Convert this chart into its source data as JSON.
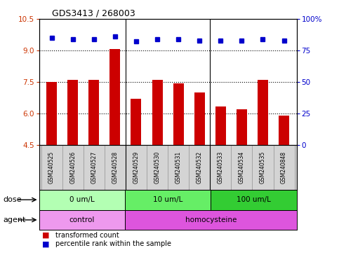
{
  "title": "GDS3413 / 268003",
  "samples": [
    "GSM240525",
    "GSM240526",
    "GSM240527",
    "GSM240528",
    "GSM240529",
    "GSM240530",
    "GSM240531",
    "GSM240532",
    "GSM240533",
    "GSM240534",
    "GSM240535",
    "GSM240848"
  ],
  "bar_values": [
    7.5,
    7.6,
    7.6,
    9.05,
    6.7,
    7.6,
    7.45,
    7.0,
    6.35,
    6.2,
    7.6,
    5.9
  ],
  "dot_values": [
    85,
    84,
    84,
    86,
    82,
    84,
    84,
    83,
    83,
    83,
    84,
    83
  ],
  "ylim_left": [
    4.5,
    10.5
  ],
  "ylim_right": [
    0,
    100
  ],
  "yticks_left": [
    4.5,
    6.0,
    7.5,
    9.0,
    10.5
  ],
  "yticks_right": [
    0,
    25,
    50,
    75,
    100
  ],
  "bar_color": "#cc0000",
  "dot_color": "#0000cc",
  "background_color": "#ffffff",
  "dose_groups": [
    {
      "label": "0 um/L",
      "start": 0,
      "end": 4,
      "color": "#b3ffb3"
    },
    {
      "label": "10 um/L",
      "start": 4,
      "end": 8,
      "color": "#66ee66"
    },
    {
      "label": "100 um/L",
      "start": 8,
      "end": 12,
      "color": "#33cc33"
    }
  ],
  "agent_groups": [
    {
      "label": "control",
      "start": 0,
      "end": 4,
      "color": "#ee99ee"
    },
    {
      "label": "homocysteine",
      "start": 4,
      "end": 12,
      "color": "#dd55dd"
    }
  ],
  "dose_label": "dose",
  "agent_label": "agent",
  "legend_items": [
    {
      "color": "#cc0000",
      "label": "transformed count"
    },
    {
      "color": "#0000cc",
      "label": "percentile rank within the sample"
    }
  ],
  "tick_label_color_left": "#cc3300",
  "tick_label_color_right": "#0000cc",
  "grid_yticks": [
    6.0,
    7.5,
    9.0
  ],
  "group_separators": [
    3.5,
    7.5
  ],
  "bar_width": 0.5,
  "xlim": [
    -0.6,
    11.6
  ]
}
